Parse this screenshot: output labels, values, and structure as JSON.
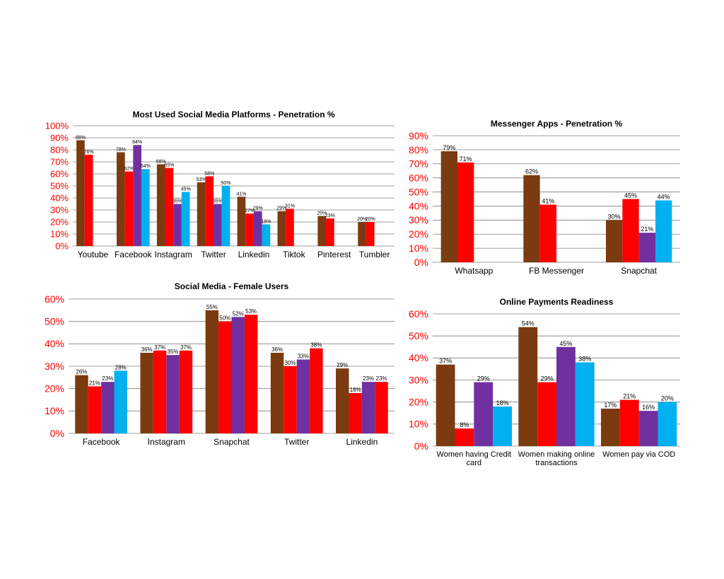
{
  "chart_data": [
    {
      "type": "bar",
      "title": "Most Used Social Media Platforms - Penetration %",
      "categories": [
        "Youtube",
        "Facebook",
        "Instagram",
        "Twitter",
        "Linkedin",
        "Tiktok",
        "Pinterest",
        "Tumbler"
      ],
      "series": [
        {
          "values": [
            88,
            78,
            68,
            53,
            41,
            29,
            25,
            20
          ],
          "color": "#7b3a10"
        },
        {
          "values": [
            76,
            62,
            65,
            58,
            27,
            31,
            23,
            20
          ],
          "color": "#ff0000"
        },
        {
          "values": [
            null,
            84,
            35,
            35,
            29,
            null,
            null,
            null
          ],
          "color": "#7030a0"
        },
        {
          "values": [
            null,
            64,
            45,
            50,
            18,
            null,
            null,
            null
          ],
          "color": "#00b0f0"
        }
      ],
      "ylim": [
        0,
        100
      ],
      "ytick_step": 10,
      "ytick_labels": [
        "0%",
        "10%",
        "20%",
        "30%",
        "40%",
        "50%",
        "60%",
        "70%",
        "80%",
        "90%",
        "100%"
      ],
      "data_labels": [
        [
          "88%",
          "78%",
          "68%",
          "53%",
          "41%",
          "29%",
          "25%",
          "20%"
        ],
        [
          "76%",
          "62%",
          "65%",
          "58%",
          "27%",
          "31%",
          "23%",
          "20%"
        ],
        [
          null,
          "84%",
          "35%",
          "35%",
          "29%",
          null,
          null,
          null
        ],
        [
          null,
          "64%",
          "45%",
          "50%",
          "18%",
          null,
          null,
          null
        ]
      ],
      "grid": true,
      "legend": "none"
    },
    {
      "type": "bar",
      "title": "Messenger Apps - Penetration %",
      "categories": [
        "Whatsapp",
        "FB Messenger",
        "Snapchat"
      ],
      "series": [
        {
          "values": [
            79,
            62,
            30
          ],
          "color": "#7b3a10"
        },
        {
          "values": [
            71,
            41,
            45
          ],
          "color": "#ff0000"
        },
        {
          "values": [
            null,
            null,
            21
          ],
          "color": "#7030a0"
        },
        {
          "values": [
            null,
            null,
            44
          ],
          "color": "#00b0f0"
        }
      ],
      "ylim": [
        0,
        90
      ],
      "ytick_step": 10,
      "ytick_labels": [
        "0%",
        "10%",
        "20%",
        "30%",
        "40%",
        "50%",
        "60%",
        "70%",
        "80%",
        "90%"
      ],
      "data_labels": [
        [
          "79%",
          "62%",
          "30%"
        ],
        [
          "71%",
          "41%",
          "45%"
        ],
        [
          null,
          null,
          "21%"
        ],
        [
          null,
          null,
          "44%"
        ]
      ],
      "grid": true,
      "legend": "none"
    },
    {
      "type": "bar",
      "title": "Social Media - Female Users",
      "categories": [
        "Facebook",
        "Instagram",
        "Snapchat",
        "Twitter",
        "Linkedin"
      ],
      "series": [
        {
          "values": [
            26,
            36,
            55,
            36,
            29
          ],
          "color": "#7b3a10"
        },
        {
          "values": [
            21,
            37,
            50,
            30,
            18
          ],
          "color": "#ff0000"
        },
        {
          "values": [
            23,
            35,
            52,
            33,
            23
          ],
          "color": "#7030a0"
        },
        {
          "values": [
            28,
            37,
            53,
            38,
            23
          ],
          "color": "#00b0f0",
          "colors": [
            "#00b0f0",
            "#ff0000",
            "#ff0000",
            "#ff0000",
            "#ff0000"
          ]
        }
      ],
      "ylim": [
        0,
        60
      ],
      "ytick_step": 10,
      "ytick_labels": [
        "0%",
        "10%",
        "20%",
        "30%",
        "40%",
        "50%",
        "60%"
      ],
      "data_labels": [
        [
          "26%",
          "36%",
          "55%",
          "36%",
          "29%"
        ],
        [
          "21%",
          "37%",
          "50%",
          "30%",
          "18%"
        ],
        [
          "23%",
          "35%",
          "52%",
          "33%",
          "23%"
        ],
        [
          "28%",
          "37%",
          "53%",
          "38%",
          "23%"
        ]
      ],
      "grid": true,
      "legend": "none"
    },
    {
      "type": "bar",
      "title": "Online Payments Readiness",
      "categories": [
        [
          "Women having Credit",
          "card"
        ],
        [
          "Women making online",
          "transactions"
        ],
        [
          "Women pay via COD"
        ]
      ],
      "series": [
        {
          "values": [
            37,
            54,
            17
          ],
          "color": "#7b3a10"
        },
        {
          "values": [
            8,
            29,
            21
          ],
          "color": "#ff0000"
        },
        {
          "values": [
            29,
            45,
            16
          ],
          "color": "#7030a0"
        },
        {
          "values": [
            18,
            38,
            20
          ],
          "color": "#00b0f0"
        }
      ],
      "ylim": [
        0,
        60
      ],
      "ytick_step": 10,
      "ytick_labels": [
        "0%",
        "10%",
        "20%",
        "30%",
        "40%",
        "50%",
        "60%"
      ],
      "data_labels": [
        [
          "37%",
          "54%",
          "17%"
        ],
        [
          "8%",
          "29%",
          "21%"
        ],
        [
          "29%",
          "45%",
          "16%"
        ],
        [
          "18%",
          "38%",
          "20%"
        ]
      ],
      "grid": true,
      "legend": "none"
    }
  ],
  "style": {
    "tick_color": "#ff0000",
    "grid_color": "#7f7f7f",
    "text_color": "#000000"
  }
}
